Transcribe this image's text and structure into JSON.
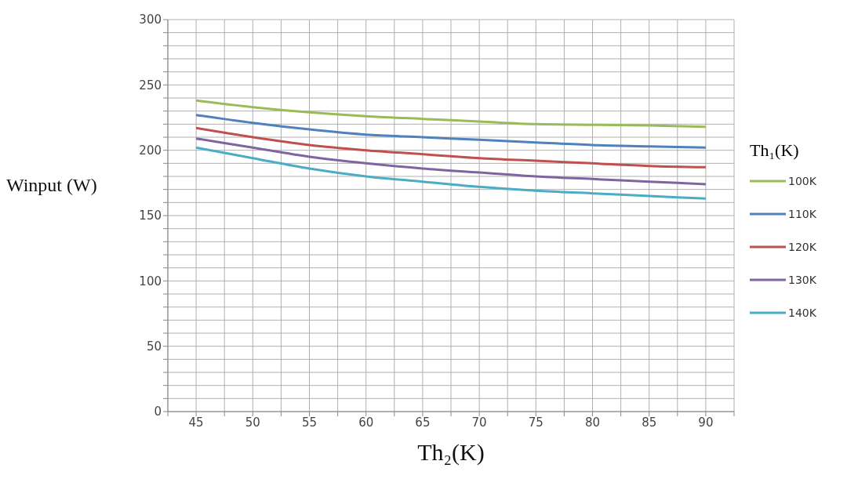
{
  "chart_data": {
    "type": "line",
    "xlabel": "Th₂(K)",
    "ylabel": "Winput (W)",
    "legend_title": "Th₁(K)",
    "x": [
      45,
      50,
      55,
      60,
      65,
      70,
      75,
      80,
      85,
      90
    ],
    "xlim": [
      42.5,
      92.5
    ],
    "xticks": [
      {
        "value": 42.5,
        "label": null
      },
      45,
      {
        "value": 47.5,
        "label": null
      },
      50,
      {
        "value": 52.5,
        "label": null
      },
      55,
      {
        "value": 57.5,
        "label": null
      },
      60,
      {
        "value": 62.5,
        "label": null
      },
      65,
      {
        "value": 67.5,
        "label": null
      },
      70,
      {
        "value": 72.5,
        "label": null
      },
      75,
      {
        "value": 77.5,
        "label": null
      },
      80,
      {
        "value": 82.5,
        "label": null
      },
      85,
      {
        "value": 87.5,
        "label": null
      },
      90,
      {
        "value": 92.5,
        "label": null
      }
    ],
    "ylim": [
      0,
      300
    ],
    "yticks": [
      0,
      {
        "value": 10,
        "label": null
      },
      {
        "value": 20,
        "label": null
      },
      {
        "value": 30,
        "label": null
      },
      {
        "value": 40,
        "label": null
      },
      50,
      {
        "value": 60,
        "label": null
      },
      {
        "value": 70,
        "label": null
      },
      {
        "value": 80,
        "label": null
      },
      {
        "value": 90,
        "label": null
      },
      100,
      {
        "value": 110,
        "label": null
      },
      {
        "value": 120,
        "label": null
      },
      {
        "value": 130,
        "label": null
      },
      {
        "value": 140,
        "label": null
      },
      150,
      {
        "value": 160,
        "label": null
      },
      {
        "value": 170,
        "label": null
      },
      {
        "value": 180,
        "label": null
      },
      {
        "value": 190,
        "label": null
      },
      200,
      {
        "value": 210,
        "label": null
      },
      {
        "value": 220,
        "label": null
      },
      {
        "value": 230,
        "label": null
      },
      {
        "value": 240,
        "label": null
      },
      250,
      {
        "value": 260,
        "label": null
      },
      {
        "value": 270,
        "label": null
      },
      {
        "value": 280,
        "label": null
      },
      {
        "value": 290,
        "label": null
      },
      300
    ],
    "grid": true,
    "legend": "right",
    "marker": "none",
    "line_style": "solid",
    "series": [
      {
        "name": "100K",
        "color": "#9bbb59",
        "values": [
          238,
          233,
          229,
          226,
          224,
          222,
          220,
          219.5,
          219,
          218
        ]
      },
      {
        "name": "110K",
        "color": "#4f81bd",
        "values": [
          227,
          221,
          216,
          212,
          210,
          208,
          206,
          204,
          203,
          202
        ]
      },
      {
        "name": "120K",
        "color": "#c0504d",
        "values": [
          217,
          210,
          204,
          200,
          197,
          194,
          192,
          190,
          188,
          187
        ]
      },
      {
        "name": "130K",
        "color": "#8064a2",
        "values": [
          209,
          202,
          195,
          190,
          186,
          183,
          180,
          178,
          176,
          174
        ]
      },
      {
        "name": "140K",
        "color": "#4bacc6",
        "values": [
          202,
          194,
          186,
          180,
          176,
          172,
          169,
          167,
          165,
          163
        ]
      }
    ]
  }
}
